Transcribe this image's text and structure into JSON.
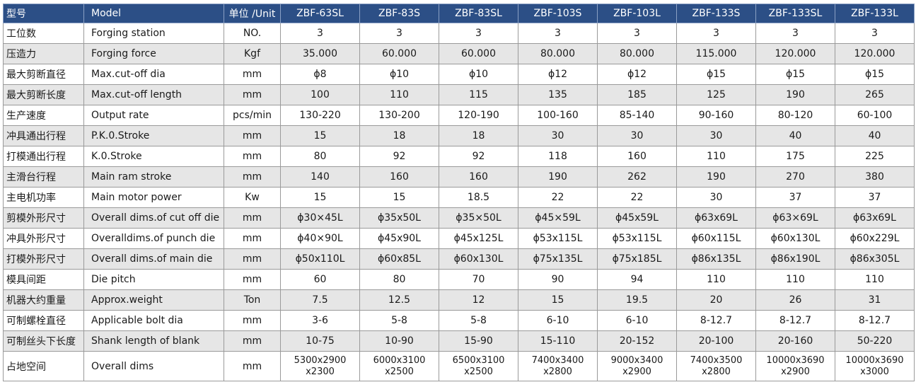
{
  "header": {
    "cn": "型号",
    "en": "Model",
    "unit": "单位 /Unit",
    "models": [
      "ZBF-63SL",
      "ZBF-83S",
      "ZBF-83SL",
      "ZBF-103S",
      "ZBF-103L",
      "ZBF-133S",
      "ZBF-133SL",
      "ZBF-133L"
    ]
  },
  "rows": [
    {
      "cn": "工位数",
      "en": "Forging station",
      "unit": "NO.",
      "values": [
        "3",
        "3",
        "3",
        "3",
        "3",
        "3",
        "3",
        "3"
      ]
    },
    {
      "cn": "压造力",
      "en": "Forging force",
      "unit": "Kgf",
      "values": [
        "35.000",
        "60.000",
        "60.000",
        "80.000",
        "80.000",
        "115.000",
        "120.000",
        "120.000"
      ]
    },
    {
      "cn": "最大剪断直径",
      "en": "Max.cut-off dia",
      "unit": "mm",
      "values": [
        "ϕ8",
        "ϕ10",
        "ϕ10",
        "ϕ12",
        "ϕ12",
        "ϕ15",
        "ϕ15",
        "ϕ15"
      ]
    },
    {
      "cn": "最大剪断长度",
      "en": "Max.cut-off length",
      "unit": "mm",
      "values": [
        "100",
        "110",
        "115",
        "135",
        "185",
        "125",
        "190",
        "265"
      ]
    },
    {
      "cn": "生产速度",
      "en": "Output rate",
      "unit": "pcs/min",
      "values": [
        "130-220",
        "130-200",
        "120-190",
        "100-160",
        "85-140",
        "90-160",
        "80-120",
        "60-100"
      ]
    },
    {
      "cn": "冲具通出行程",
      "en": "P.K.0.Stroke",
      "unit": "mm",
      "values": [
        "15",
        "18",
        "18",
        "30",
        "30",
        "30",
        "40",
        "40"
      ]
    },
    {
      "cn": "打模通出行程",
      "en": "K.0.Stroke",
      "unit": "mm",
      "values": [
        "80",
        "92",
        "92",
        "118",
        "160",
        "110",
        "175",
        "225"
      ]
    },
    {
      "cn": "主滑台行程",
      "en": "Main ram stroke",
      "unit": "mm",
      "values": [
        "140",
        "160",
        "160",
        "190",
        "262",
        "190",
        "270",
        "380"
      ]
    },
    {
      "cn": "主电机功率",
      "en": "Main motor power",
      "unit": "Kw",
      "values": [
        "15",
        "15",
        "18.5",
        "22",
        "22",
        "30",
        "37",
        "37"
      ]
    },
    {
      "cn": "剪模外形尺寸",
      "en": "Overall dims.of cut off die",
      "unit": "mm",
      "values": [
        "ϕ30×45L",
        "ϕ35x50L",
        "ϕ35×50L",
        "ϕ45×59L",
        "ϕ45x59L",
        "ϕ63x69L",
        "ϕ63×69L",
        "ϕ63x69L"
      ]
    },
    {
      "cn": "冲具外形尺寸",
      "en": "Overalldims.of punch die",
      "unit": "mm",
      "values": [
        "ϕ40×90L",
        "ϕ45x90L",
        "ϕ45x125L",
        "ϕ53x115L",
        "ϕ53x115L",
        "ϕ60x115L",
        "ϕ60x130L",
        "ϕ60x229L"
      ]
    },
    {
      "cn": "打模外形尺寸",
      "en": "Overall dims.of main die",
      "unit": "mm",
      "values": [
        "ϕ50x110L",
        "ϕ60x85L",
        "ϕ60x130L",
        "ϕ75x135L",
        "ϕ75x185L",
        "ϕ86x135L",
        "ϕ86x190L",
        "ϕ86x305L"
      ]
    },
    {
      "cn": "模具间距",
      "en": "Die pitch",
      "unit": "mm",
      "values": [
        "60",
        "80",
        "70",
        "90",
        "94",
        "110",
        "110",
        "110"
      ]
    },
    {
      "cn": "机器大约重量",
      "en": "Approx.weight",
      "unit": "Ton",
      "values": [
        "7.5",
        "12.5",
        "12",
        "15",
        "19.5",
        "20",
        "26",
        "31"
      ]
    },
    {
      "cn": "可制螺栓直径",
      "en": "Applicable bolt dia",
      "unit": "mm",
      "values": [
        "3-6",
        "5-8",
        "5-8",
        "6-10",
        "6-10",
        "8-12.7",
        "8-12.7",
        "8-12.7"
      ]
    },
    {
      "cn": "可制丝头下长度",
      "en": "Shank length of blank",
      "unit": "mm",
      "values": [
        "10-75",
        "10-90",
        "15-90",
        "15-110",
        "20-152",
        "20-100",
        "20-160",
        "50-220"
      ]
    },
    {
      "cn": "占地空间",
      "en": "Overall dims",
      "unit": "mm",
      "values": [
        [
          "5300x2900",
          "x2300"
        ],
        [
          "6000x3100",
          "x2500"
        ],
        [
          "6500x3100",
          "x2500"
        ],
        [
          "7400x3400",
          "x2800"
        ],
        [
          "9000x3400",
          "x2900"
        ],
        [
          "7400x3500",
          "x2800"
        ],
        [
          "10000x3690",
          "x2900"
        ],
        [
          "10000x3690",
          "x3000"
        ]
      ]
    }
  ]
}
